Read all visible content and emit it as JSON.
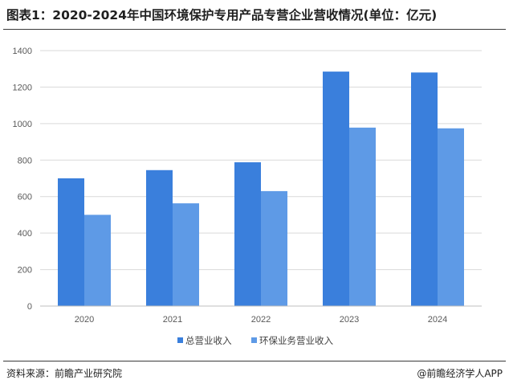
{
  "header": {
    "title": "图表1：2020-2024年中国环境保护专用产品专营企业营收情况(单位：亿元)"
  },
  "footer": {
    "source": "资料来源：前瞻产业研究院",
    "credit": "@前瞻经济学人APP"
  },
  "colors": {
    "series1": "#3a7fdc",
    "series2": "#5e9ae6",
    "grid": "#d9d9d9",
    "axis": "#bfbfbf"
  },
  "chart_data": {
    "type": "bar",
    "categories": [
      "2020",
      "2021",
      "2022",
      "2023",
      "2024"
    ],
    "series": [
      {
        "name": "总营业收入",
        "values": [
          700,
          745,
          788,
          1285,
          1280
        ]
      },
      {
        "name": "环保业务营业收入",
        "values": [
          500,
          563,
          630,
          978,
          974
        ]
      }
    ],
    "ylim": [
      0,
      1400
    ],
    "yticks": [
      0,
      200,
      400,
      600,
      800,
      1000,
      1200,
      1400
    ],
    "grid": true,
    "legend": "bottom"
  }
}
